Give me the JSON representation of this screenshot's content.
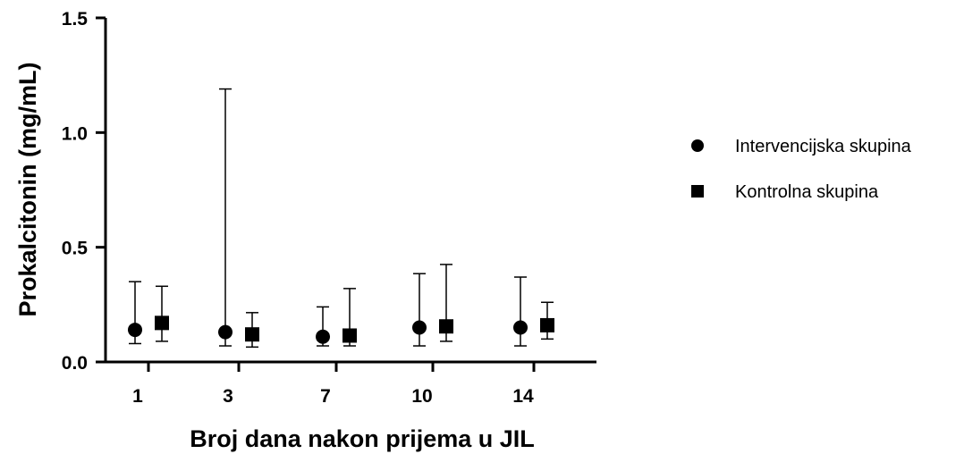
{
  "chart_data": {
    "type": "scatter",
    "xlabel": "Broj dana nakon prijema u  JIL",
    "ylabel": "Prokalcitonin (mg/mL)",
    "categories": [
      "1",
      "3",
      "7",
      "10",
      "14"
    ],
    "ylim": [
      0,
      1.5
    ],
    "yticks": [
      "0.0",
      "0.5",
      "1.0",
      "1.5"
    ],
    "grid": false,
    "legend_position": "right",
    "series": [
      {
        "name": "Intervencijska skupina",
        "marker": "circle",
        "color": "#000000",
        "values": [
          0.14,
          0.13,
          0.11,
          0.15,
          0.15
        ],
        "err_low": [
          0.08,
          0.07,
          0.07,
          0.07,
          0.07
        ],
        "err_high": [
          0.35,
          1.19,
          0.24,
          0.385,
          0.37
        ]
      },
      {
        "name": "Kontrolna skupina",
        "marker": "square",
        "color": "#000000",
        "values": [
          0.17,
          0.12,
          0.115,
          0.155,
          0.16
        ],
        "err_low": [
          0.09,
          0.065,
          0.07,
          0.09,
          0.1
        ],
        "err_high": [
          0.33,
          0.215,
          0.32,
          0.425,
          0.26
        ]
      }
    ]
  }
}
